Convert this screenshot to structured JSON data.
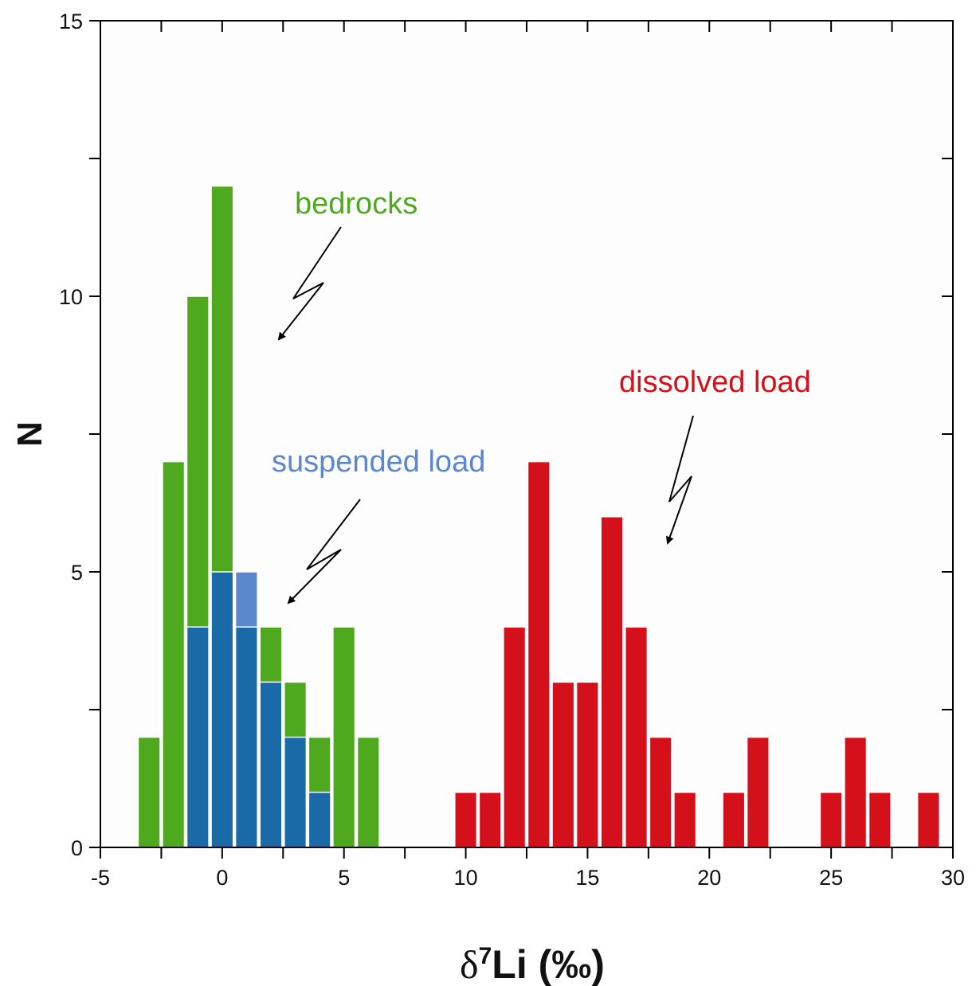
{
  "chart_data": {
    "type": "bar",
    "xlabel": {
      "symbol": "δ",
      "superscript": "7",
      "rest": "Li (‰)"
    },
    "ylabel": "N",
    "xlim": [
      -5,
      30
    ],
    "ylim": [
      0,
      15
    ],
    "x_ticks": [
      -5,
      0,
      5,
      10,
      15,
      20,
      25,
      30
    ],
    "y_ticks": [
      0,
      5,
      10,
      15
    ],
    "bin_width": 1,
    "series": [
      {
        "name": "bedrocks",
        "color": "#4fa91f",
        "x": [
          -3,
          -2,
          -1,
          0,
          1,
          2,
          3,
          4,
          5,
          6
        ],
        "values": [
          2,
          7,
          10,
          12,
          4,
          4,
          3,
          2,
          4,
          2
        ]
      },
      {
        "name": "suspended load",
        "color": "#1a6aa8",
        "x": [
          -1,
          0,
          1,
          2,
          3,
          4
        ],
        "values": [
          4,
          5,
          5,
          3,
          2,
          1
        ]
      },
      {
        "name": "dissolved load",
        "color": "#d4101b",
        "x": [
          10,
          11,
          12,
          13,
          14,
          15,
          16,
          17,
          18,
          19,
          21,
          22,
          25,
          26,
          27,
          29
        ],
        "values": [
          1,
          1,
          4,
          7,
          3,
          3,
          6,
          4,
          2,
          1,
          1,
          2,
          1,
          2,
          1,
          1
        ]
      }
    ],
    "annotations": [
      {
        "text": "bedrocks",
        "color": "#4fa91f"
      },
      {
        "text": "suspended load",
        "color": "#5b87cf"
      },
      {
        "text": "dissolved load",
        "color": "#d4101b"
      }
    ],
    "highlight_color": "#5b87cf"
  }
}
